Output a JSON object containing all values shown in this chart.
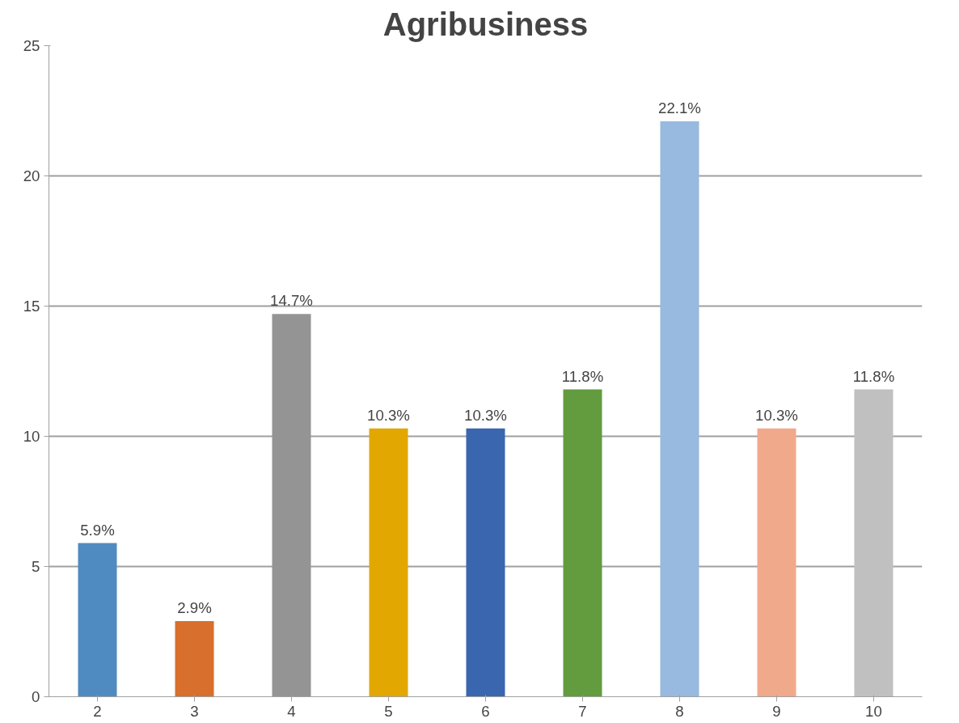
{
  "chart_data": {
    "type": "bar",
    "title": "Agribusiness",
    "categories": [
      "2",
      "3",
      "4",
      "5",
      "6",
      "7",
      "8",
      "9",
      "10"
    ],
    "values": [
      5.9,
      2.9,
      14.7,
      10.3,
      10.3,
      11.8,
      22.1,
      10.3,
      11.8
    ],
    "value_labels": [
      "5.9%",
      "2.9%",
      "14.7%",
      "10.3%",
      "10.3%",
      "11.8%",
      "22.1%",
      "10.3%",
      "11.8%"
    ],
    "colors": [
      "#4f8bc0",
      "#d86f2c",
      "#949494",
      "#e2a700",
      "#3a66b0",
      "#629c3e",
      "#98b9e0",
      "#f1a98b",
      "#c0c0c0"
    ],
    "ylim": [
      0,
      25
    ],
    "yticks": [
      0,
      5,
      10,
      15,
      20,
      25
    ],
    "grid": "y"
  }
}
